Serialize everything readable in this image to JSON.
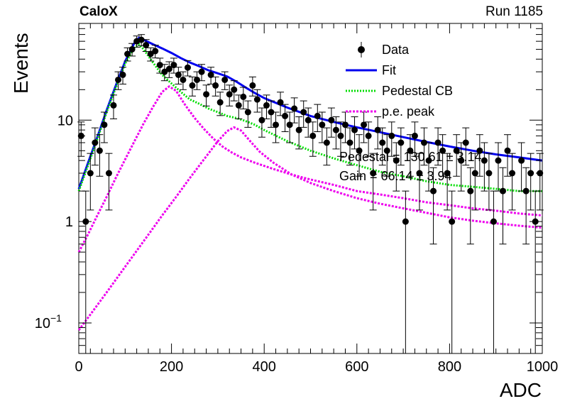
{
  "header": {
    "left": "CaloX",
    "right": "Run 1185"
  },
  "colors": {
    "data": "#000000",
    "fit": "#0000ee",
    "pedestal": "#00dd00",
    "pe_peak": "#ee00ee"
  },
  "chart_data": {
    "type": "scatter",
    "xlabel": "ADC",
    "ylabel": "Events",
    "xlim": [
      0,
      1000
    ],
    "ylim": [
      0.05,
      90
    ],
    "log_y": true,
    "x_ticks": [
      "0",
      "200",
      "400",
      "600",
      "800",
      "1000"
    ],
    "y_ticks": [
      {
        "value": 0.1,
        "base": "10",
        "exp": "−1"
      },
      {
        "value": 1,
        "label": "1"
      },
      {
        "value": 10,
        "label": "10"
      }
    ],
    "legend": {
      "placement": "top-right",
      "entries": [
        {
          "label": "Data",
          "style": "marker"
        },
        {
          "label": "Fit",
          "style": "solid"
        },
        {
          "label": "Pedestal CB",
          "style": "dotted"
        },
        {
          "label": "p.e. peak",
          "style": "dotted"
        }
      ]
    },
    "fit_results": [
      "Pedestal = 130.61 ± 3.14",
      "Gain = 66.14 ± 3.94"
    ],
    "series": [
      {
        "name": "Data",
        "x": [
          5,
          15,
          25,
          35,
          45,
          55,
          65,
          75,
          85,
          95,
          105,
          115,
          125,
          135,
          145,
          155,
          165,
          175,
          185,
          195,
          205,
          215,
          225,
          235,
          245,
          255,
          265,
          275,
          285,
          295,
          305,
          315,
          325,
          335,
          345,
          355,
          365,
          375,
          385,
          395,
          405,
          415,
          425,
          435,
          445,
          455,
          465,
          475,
          485,
          495,
          505,
          515,
          525,
          535,
          545,
          555,
          565,
          575,
          585,
          595,
          605,
          615,
          625,
          635,
          645,
          655,
          665,
          675,
          685,
          695,
          705,
          715,
          725,
          735,
          745,
          755,
          765,
          775,
          785,
          795,
          805,
          815,
          825,
          835,
          845,
          855,
          865,
          875,
          885,
          895,
          905,
          915,
          925,
          935,
          945,
          955,
          965,
          975,
          985,
          995
        ],
        "y": [
          7,
          1,
          3,
          6,
          5,
          9,
          3,
          14,
          25,
          28,
          45,
          50,
          60,
          62,
          55,
          45,
          48,
          35,
          30,
          32,
          35,
          28,
          25,
          33,
          22,
          25,
          30,
          18,
          28,
          22,
          15,
          25,
          18,
          20,
          14,
          17,
          12,
          22,
          16,
          10,
          14,
          12,
          9,
          15,
          11,
          9,
          13,
          8,
          12,
          10,
          7,
          11,
          9,
          6,
          10,
          8,
          7,
          9,
          6,
          8,
          5,
          9,
          7,
          3,
          8,
          6,
          5,
          7,
          4,
          6,
          1,
          5,
          7,
          3,
          6,
          4,
          2,
          6,
          5,
          3,
          1,
          5,
          4,
          6,
          2,
          3,
          5,
          4,
          3,
          1,
          4,
          2,
          5,
          3,
          0.05,
          4,
          2,
          3,
          1,
          3
        ],
        "yerr": [
          2.6,
          1.0,
          1.7,
          2.4,
          2.2,
          3.0,
          1.7,
          3.7,
          5.0,
          5.3,
          6.7,
          7.1,
          7.7,
          7.9,
          7.4,
          6.7,
          6.9,
          5.9,
          5.5,
          5.7,
          5.9,
          5.3,
          5.0,
          5.7,
          4.7,
          5.0,
          5.5,
          4.2,
          5.3,
          4.7,
          3.9,
          5.0,
          4.2,
          4.5,
          3.7,
          4.1,
          3.5,
          4.7,
          4.0,
          3.2,
          3.7,
          3.5,
          3.0,
          3.9,
          3.3,
          3.0,
          3.6,
          2.8,
          3.5,
          3.2,
          2.6,
          3.3,
          3.0,
          2.4,
          3.2,
          2.8,
          2.6,
          3.0,
          2.4,
          2.8,
          2.2,
          3.0,
          2.6,
          1.7,
          2.8,
          2.4,
          2.2,
          2.6,
          2.0,
          2.4,
          1.0,
          2.2,
          2.6,
          1.7,
          2.4,
          2.0,
          1.4,
          2.4,
          2.2,
          1.7,
          1.0,
          2.2,
          2.0,
          2.4,
          1.4,
          1.7,
          2.2,
          2.0,
          1.7,
          1.0,
          2.0,
          1.4,
          2.2,
          1.7,
          0,
          2.0,
          1.4,
          1.7,
          1.0,
          1.7
        ]
      },
      {
        "name": "Fit",
        "x": [
          0,
          20,
          40,
          60,
          80,
          100,
          120,
          130,
          140,
          160,
          180,
          200,
          220,
          240,
          260,
          280,
          300,
          320,
          340,
          360,
          380,
          400,
          450,
          500,
          550,
          600,
          650,
          700,
          750,
          800,
          850,
          900,
          950,
          1000
        ],
        "y": [
          2.1,
          3.8,
          6.8,
          12.5,
          22,
          38,
          58,
          65,
          62,
          56,
          51,
          46,
          41,
          37,
          34,
          31,
          29,
          27,
          24,
          21,
          18.5,
          16.5,
          13.3,
          11,
          9.6,
          8.5,
          7.6,
          6.8,
          6.1,
          5.5,
          5,
          4.6,
          4.3,
          4.0
        ]
      },
      {
        "name": "Pedestal CB",
        "x": [
          0,
          20,
          40,
          60,
          80,
          100,
          120,
          130,
          140,
          160,
          180,
          200,
          220,
          240,
          260,
          280,
          300,
          320,
          340,
          360,
          380,
          400,
          450,
          500,
          550,
          600,
          650,
          700,
          750,
          800,
          850,
          900,
          950,
          1000
        ],
        "y": [
          2.0,
          3.6,
          6.5,
          12,
          21,
          36,
          52,
          56,
          50,
          37,
          28,
          23,
          19,
          16,
          14.5,
          13,
          12,
          11,
          10.5,
          9.8,
          9.0,
          8.0,
          6.2,
          5.0,
          4.2,
          3.6,
          3.1,
          2.8,
          2.5,
          2.3,
          2.2,
          2.1,
          2.0,
          2.0
        ]
      },
      {
        "name": "p.e. peak",
        "x": [
          0,
          20,
          40,
          60,
          80,
          100,
          120,
          140,
          160,
          180,
          195,
          210,
          230,
          250,
          270,
          290,
          310,
          330,
          350,
          380,
          420,
          460,
          500,
          550,
          600,
          650,
          700,
          750,
          800,
          850,
          900,
          950,
          1000
        ],
        "y": [
          0.5,
          0.75,
          1.15,
          1.75,
          2.7,
          4.1,
          6.2,
          9.3,
          13.5,
          19,
          21.5,
          19.5,
          14,
          10.5,
          8.2,
          6.6,
          5.5,
          4.8,
          4.3,
          3.8,
          3.3,
          2.9,
          2.6,
          2.3,
          2.0,
          1.85,
          1.7,
          1.55,
          1.45,
          1.35,
          1.28,
          1.2,
          1.15
        ]
      },
      {
        "name": "p.e. peak",
        "x": [
          0,
          30,
          60,
          90,
          120,
          150,
          180,
          210,
          240,
          270,
          300,
          320,
          335,
          350,
          370,
          390,
          420,
          460,
          500,
          550,
          600,
          650,
          700,
          750,
          800,
          850,
          900,
          950,
          1000
        ],
        "y": [
          0.085,
          0.13,
          0.2,
          0.31,
          0.48,
          0.74,
          1.15,
          1.75,
          2.7,
          4.1,
          6.2,
          7.8,
          8.5,
          7.9,
          6.2,
          4.9,
          3.8,
          2.9,
          2.4,
          2.0,
          1.7,
          1.5,
          1.35,
          1.22,
          1.1,
          1.02,
          0.96,
          0.91,
          0.87
        ]
      }
    ]
  }
}
